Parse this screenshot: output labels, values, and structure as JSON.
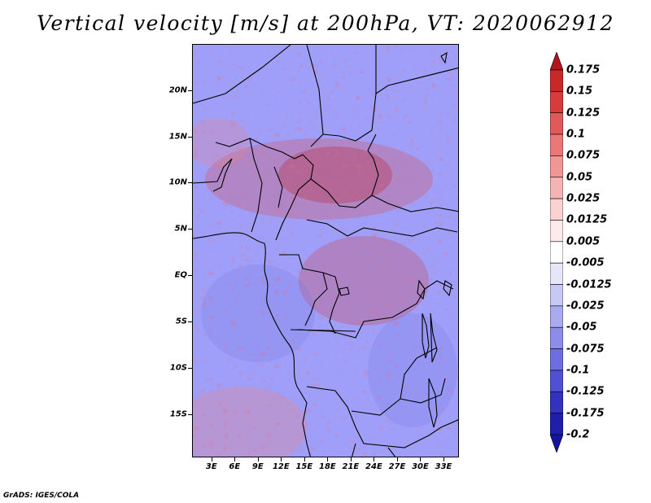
{
  "title": "Vertical velocity [m/s] at 200hPa, VT: 2020062912",
  "credit": "GrADS: IGES/COLA",
  "map": {
    "lat_labels": [
      "20N",
      "15N",
      "10N",
      "5N",
      "EQ",
      "5S",
      "10S",
      "15S"
    ],
    "lat_values": [
      20,
      15,
      10,
      5,
      0,
      -5,
      -10,
      -15
    ],
    "lon_labels": [
      "3E",
      "6E",
      "9E",
      "12E",
      "15E",
      "18E",
      "21E",
      "24E",
      "27E",
      "30E",
      "33E"
    ],
    "lon_values": [
      3,
      6,
      9,
      12,
      15,
      18,
      21,
      24,
      27,
      30,
      33
    ],
    "lon_range": [
      0.5,
      35
    ],
    "lat_range": [
      -19.7,
      25
    ]
  },
  "legend": {
    "labels": [
      "0.175",
      "0.15",
      "0.125",
      "0.1",
      "0.075",
      "0.05",
      "0.025",
      "0.0125",
      "0.005",
      "-0.005",
      "-0.0125",
      "-0.025",
      "-0.05",
      "-0.075",
      "-0.1",
      "-0.125",
      "-0.175",
      "-0.2"
    ],
    "colors": [
      "#b4141e",
      "#c82828",
      "#d73c3c",
      "#e15a5a",
      "#ea7878",
      "#f19696",
      "#f5b4b4",
      "#fad2d2",
      "#fdeaea",
      "#ffffff",
      "#e6e6fa",
      "#c8c8f5",
      "#aaaaf0",
      "#8c8ceb",
      "#6e6ee1",
      "#5050d2",
      "#3232be",
      "#1e1eaa",
      "#1414a0"
    ]
  }
}
